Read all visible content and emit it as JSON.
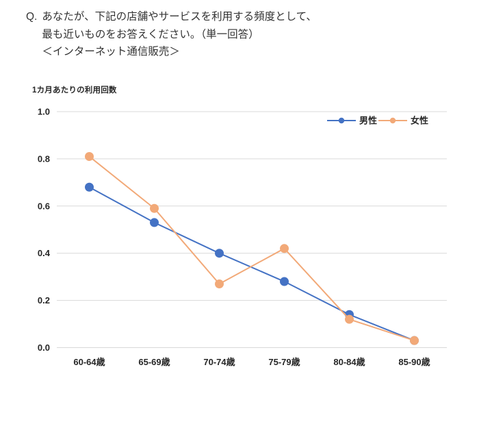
{
  "question": {
    "prefix": "Q.",
    "lines": [
      "あなたが、下記の店舗やサービスを利用する頻度として、",
      "最も近いものをお答えください。（単一回答）",
      "＜インターネット通信販売＞"
    ]
  },
  "chart_data": {
    "type": "line",
    "title": "1カ月あたりの利用回数",
    "categories": [
      "60-64歳",
      "65-69歳",
      "70-74歳",
      "75-79歳",
      "80-84歳",
      "85-90歳"
    ],
    "series": [
      {
        "name": "男性",
        "color": "#4472C4",
        "values": [
          0.68,
          0.53,
          0.4,
          0.28,
          0.14,
          0.03
        ]
      },
      {
        "name": "女性",
        "color": "#F2A978",
        "values": [
          0.81,
          0.59,
          0.27,
          0.42,
          0.12,
          0.03
        ]
      }
    ],
    "xlabel": "",
    "ylabel": "1カ月あたりの利用回数",
    "ylim": [
      0.0,
      1.0
    ],
    "yticks": [
      0.0,
      0.2,
      0.4,
      0.6,
      0.8,
      1.0
    ],
    "ytick_labels": [
      "0.0",
      "0.2",
      "0.4",
      "0.6",
      "0.8",
      "1.0"
    ],
    "grid": "horizontal",
    "gridline_color": "#D9D9D9",
    "axis_text_color": "#262626",
    "legend_position": "top-right",
    "background_color": "#FFFFFF"
  }
}
